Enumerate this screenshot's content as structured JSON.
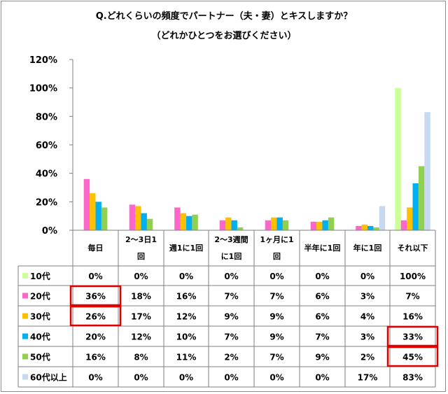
{
  "chart_data": {
    "type": "bar",
    "title": "Q.どれくらいの頻度でパートナー（夫・妻）とキスしますか？",
    "subtitle": "（どれかひとつをお選びください）",
    "categories": [
      "毎日",
      "2～3日1回",
      "週1に1回",
      "2～3週間に1回",
      "1ヶ月に1回",
      "半年に1回",
      "年に1回",
      "それ以下"
    ],
    "category_lines": [
      [
        "毎日"
      ],
      [
        "2～3日1",
        "回"
      ],
      [
        "週1に1回"
      ],
      [
        "2～3週間",
        "に1回"
      ],
      [
        "1ヶ月に1",
        "回"
      ],
      [
        "半年に1回"
      ],
      [
        "年に1回"
      ],
      [
        "それ以下"
      ]
    ],
    "series": [
      {
        "name": "10代",
        "color": "#ccff99",
        "values": [
          0,
          0,
          0,
          0,
          0,
          0,
          0,
          100
        ],
        "labels": [
          "0%",
          "0%",
          "0%",
          "0%",
          "0%",
          "0%",
          "0%",
          "100%"
        ]
      },
      {
        "name": "20代",
        "color": "#ff66cc",
        "values": [
          36,
          18,
          16,
          7,
          7,
          6,
          3,
          7
        ],
        "labels": [
          "36%",
          "18%",
          "16%",
          "7%",
          "7%",
          "6%",
          "3%",
          "7%"
        ]
      },
      {
        "name": "30代",
        "color": "#ffc000",
        "values": [
          26,
          17,
          12,
          9,
          9,
          6,
          4,
          16
        ],
        "labels": [
          "26%",
          "17%",
          "12%",
          "9%",
          "9%",
          "6%",
          "4%",
          "16%"
        ]
      },
      {
        "name": "40代",
        "color": "#00b0f0",
        "values": [
          20,
          12,
          10,
          7,
          9,
          7,
          3,
          33
        ],
        "labels": [
          "20%",
          "12%",
          "10%",
          "7%",
          "9%",
          "7%",
          "3%",
          "33%"
        ]
      },
      {
        "name": "50代",
        "color": "#92d050",
        "values": [
          16,
          8,
          11,
          2,
          7,
          9,
          2,
          45
        ],
        "labels": [
          "16%",
          "8%",
          "11%",
          "2%",
          "7%",
          "9%",
          "2%",
          "45%"
        ]
      },
      {
        "name": "60代以上",
        "color": "#c5d9f1",
        "values": [
          0,
          0,
          0,
          0,
          0,
          0,
          17,
          83
        ],
        "labels": [
          "0%",
          "0%",
          "0%",
          "0%",
          "0%",
          "0%",
          "17%",
          "83%"
        ]
      }
    ],
    "ylim": [
      0,
      120
    ],
    "yticks": [
      "0%",
      "20%",
      "40%",
      "60%",
      "80%",
      "100%",
      "120%"
    ],
    "grid": false,
    "legend": "data-table",
    "highlight_color": "#e00000",
    "highlights": [
      {
        "series": [
          1,
          2
        ],
        "category": 0
      },
      {
        "series": [
          3,
          4
        ],
        "category": 7
      }
    ]
  }
}
